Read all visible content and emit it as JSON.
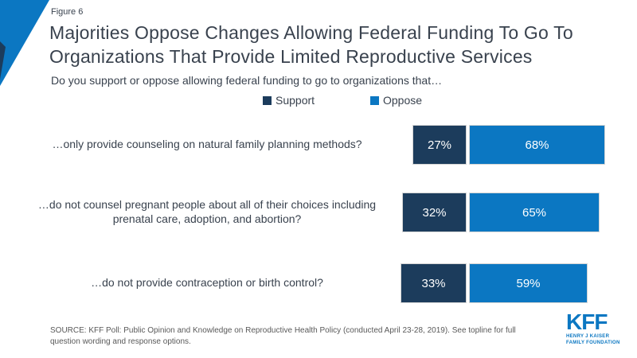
{
  "figure_label": "Figure 6",
  "title": "Majorities Oppose Changes Allowing Federal Funding To Go To Organizations That Provide Limited Reproductive Services",
  "question": "Do you support or oppose allowing federal funding to go to organizations that…",
  "legend": {
    "support": "Support",
    "oppose": "Oppose"
  },
  "colors": {
    "support_bar": "#1c3c5c",
    "oppose_bar": "#0b77c2",
    "corner_accent": "#0b77c2",
    "title_text": "#39424e",
    "source_text": "#595959",
    "logo_blue": "#0b77c2"
  },
  "chart_data": {
    "type": "bar",
    "orientation": "horizontal-stacked",
    "unit": "%",
    "categories": [
      "…only provide counseling on natural family planning methods?",
      "…do not counsel pregnant people about all of their choices including prenatal care, adoption, and abortion?",
      "…do not provide contraception or birth control?"
    ],
    "series": [
      {
        "name": "Support",
        "values": [
          27,
          32,
          33
        ]
      },
      {
        "name": "Oppose",
        "values": [
          68,
          65,
          59
        ]
      }
    ],
    "legend_position": "top",
    "grid": false,
    "value_labels_shown": true
  },
  "rows": [
    {
      "label": "…only provide counseling on natural family planning methods?",
      "support_value": 27,
      "support_label": "27%",
      "oppose_value": 68,
      "oppose_label": "68%"
    },
    {
      "label": "…do not counsel pregnant people about all of their choices including prenatal care, adoption, and abortion?",
      "support_value": 32,
      "support_label": "32%",
      "oppose_value": 65,
      "oppose_label": "65%"
    },
    {
      "label": "…do not provide contraception or birth control?",
      "support_value": 33,
      "support_label": "33%",
      "oppose_value": 59,
      "oppose_label": "59%"
    }
  ],
  "source": "SOURCE: KFF Poll: Public Opinion and Knowledge on Reproductive Health Policy (conducted April 23-28, 2019). See topline for full question wording and response options.",
  "logo": {
    "kff": "KFF",
    "line1": "HENRY J KAISER",
    "line2": "FAMILY FOUNDATION"
  }
}
